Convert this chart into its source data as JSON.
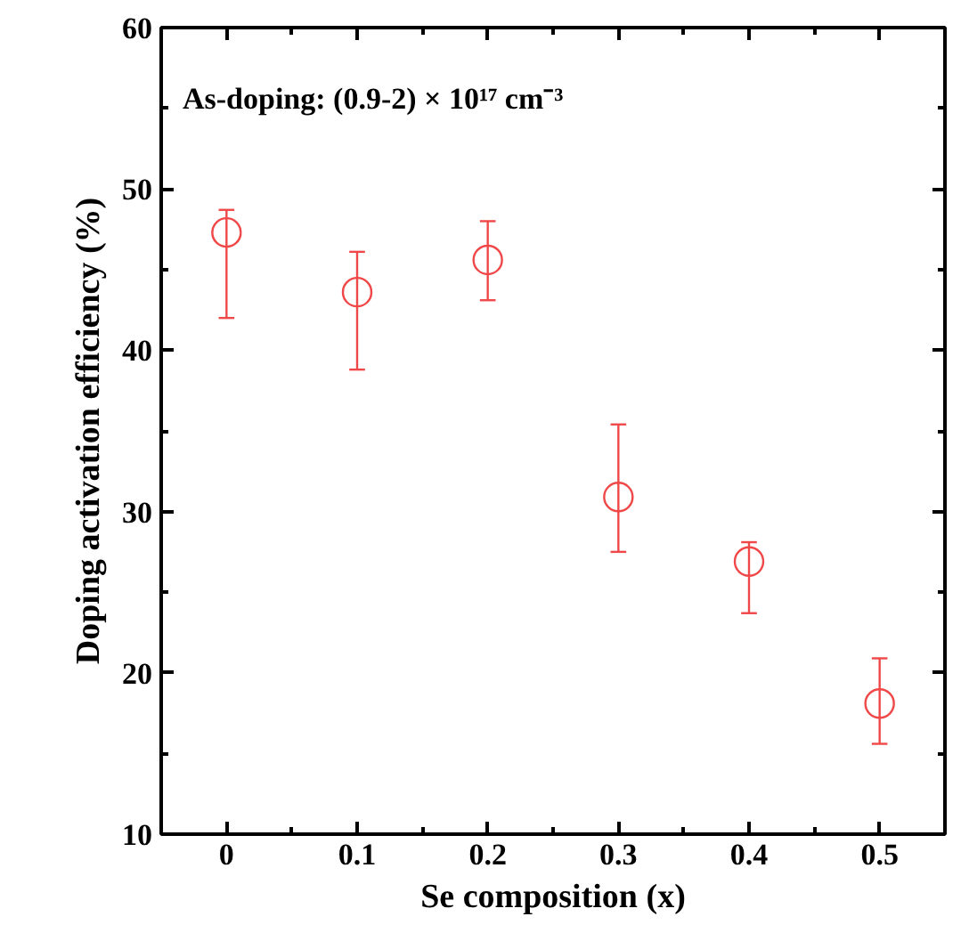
{
  "chart_data": {
    "type": "scatter",
    "xlabel": "Se composition (x)",
    "ylabel": "Doping activation efficiency (%)",
    "annotations": [
      "As-doping: (0.9-2) × 10¹⁷ cm⁻³"
    ],
    "x": [
      0,
      0.1,
      0.2,
      0.3,
      0.4,
      0.5
    ],
    "series": [
      {
        "color": "#f04848",
        "values": [
          47.3,
          43.6,
          45.6,
          30.9,
          26.9,
          18.1
        ],
        "errors": [
          [
            42.0,
            48.7
          ],
          [
            38.8,
            46.1
          ],
          [
            43.1,
            48.0
          ],
          [
            27.5,
            35.4
          ],
          [
            23.7,
            28.1
          ],
          [
            15.6,
            20.9
          ]
        ]
      }
    ],
    "marker": "circle",
    "xlim": [
      -0.05,
      0.55
    ],
    "ylim": [
      10,
      60
    ],
    "xticks": [
      0,
      0.1,
      0.2,
      0.3,
      0.4,
      0.5
    ],
    "yticks": [
      10,
      20,
      30,
      40,
      50,
      60
    ]
  }
}
